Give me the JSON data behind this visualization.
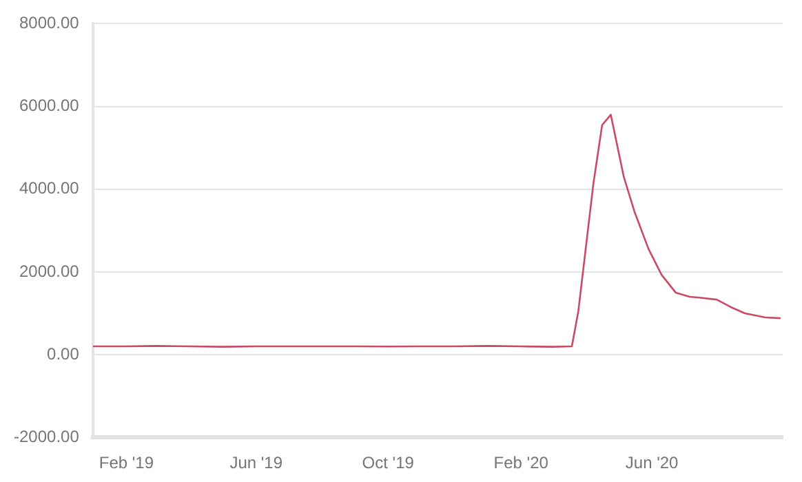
{
  "chart_data": {
    "type": "line",
    "x": [
      "2019-01-01",
      "2019-02-01",
      "2019-03-01",
      "2019-04-01",
      "2019-05-01",
      "2019-06-01",
      "2019-07-01",
      "2019-08-01",
      "2019-09-01",
      "2019-10-01",
      "2019-11-01",
      "2019-12-01",
      "2020-01-01",
      "2020-02-01",
      "2020-03-01",
      "2020-03-19",
      "2020-03-25",
      "2020-04-08",
      "2020-04-16",
      "2020-04-24",
      "2020-05-06",
      "2020-05-16",
      "2020-05-29",
      "2020-06-10",
      "2020-06-23",
      "2020-07-06",
      "2020-07-18",
      "2020-07-31",
      "2020-08-13",
      "2020-08-26",
      "2020-09-14",
      "2020-09-28"
    ],
    "series": [
      {
        "color": "#c94a63",
        "values": [
          200,
          200,
          210,
          200,
          190,
          200,
          200,
          200,
          200,
          195,
          200,
          200,
          210,
          200,
          190,
          200,
          1050,
          4150,
          5550,
          5800,
          4300,
          3450,
          2550,
          1930,
          1500,
          1400,
          1370,
          1330,
          1150,
          1000,
          900,
          880
        ]
      }
    ],
    "xlim": [
      "2019-01-01",
      "2020-09-30"
    ],
    "xticks": [
      {
        "value": "2019-02-01",
        "label": "Feb '19"
      },
      {
        "value": "2019-06-01",
        "label": "Jun '19"
      },
      {
        "value": "2019-10-01",
        "label": "Oct '19"
      },
      {
        "value": "2020-02-01",
        "label": "Feb '20"
      },
      {
        "value": "2020-06-01",
        "label": "Jun '20"
      }
    ],
    "ylim": [
      -2000,
      8000
    ],
    "yticks": [
      {
        "value": -2000,
        "label": "-2000.00"
      },
      {
        "value": 0,
        "label": "0.00"
      },
      {
        "value": 2000,
        "label": "2000.00"
      },
      {
        "value": 4000,
        "label": "4000.00"
      },
      {
        "value": 6000,
        "label": "6000.00"
      },
      {
        "value": 8000,
        "label": "8000.00"
      }
    ],
    "grid": "y",
    "marker": "none",
    "line_style": "solid"
  }
}
